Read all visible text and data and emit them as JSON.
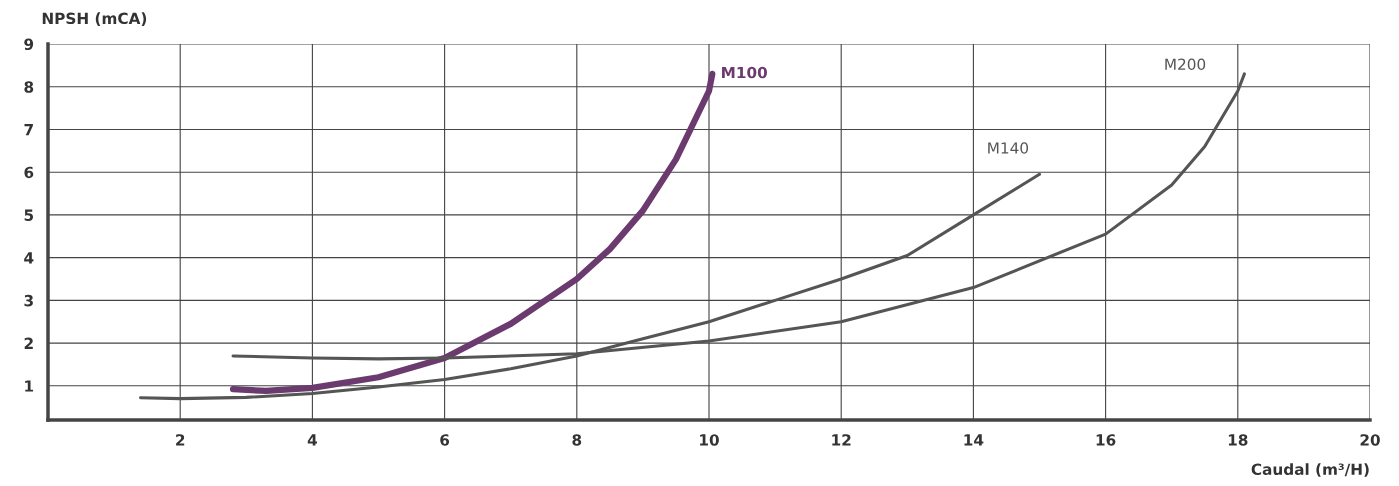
{
  "chart_data": {
    "type": "line",
    "xlabel": "Caudal (m³/H)",
    "ylabel": "NPSH (mCA)",
    "xlim": [
      0,
      20
    ],
    "ylim": [
      0.2,
      9
    ],
    "xticks": [
      2,
      4,
      6,
      8,
      10,
      12,
      14,
      16,
      18,
      20
    ],
    "yticks": [
      1,
      2,
      3,
      4,
      5,
      6,
      7,
      8,
      9
    ],
    "grid": true,
    "legend": false,
    "marker": "none",
    "line_style": "solid",
    "series": [
      {
        "name": "M100",
        "color": "#6b3a6e",
        "x": [
          2.8,
          3.3,
          4,
          5,
          6,
          7,
          8,
          8.5,
          9,
          9.5,
          10,
          10.05
        ],
        "values": [
          0.92,
          0.88,
          0.95,
          1.2,
          1.65,
          2.45,
          3.5,
          4.2,
          5.1,
          6.3,
          7.9,
          8.3
        ]
      },
      {
        "name": "M140",
        "color": "#555555",
        "x": [
          1.4,
          2,
          3,
          4,
          5,
          6,
          7,
          8,
          9,
          10,
          11,
          12,
          13,
          14,
          15
        ],
        "values": [
          0.72,
          0.7,
          0.73,
          0.82,
          0.97,
          1.15,
          1.4,
          1.7,
          2.1,
          2.5,
          3.0,
          3.5,
          4.05,
          5.0,
          5.95
        ]
      },
      {
        "name": "M200",
        "color": "#555555",
        "x": [
          2.8,
          4,
          5,
          6,
          8,
          10,
          12,
          14,
          16,
          17,
          17.5,
          18,
          18.1
        ],
        "values": [
          1.7,
          1.65,
          1.63,
          1.65,
          1.75,
          2.05,
          2.5,
          3.3,
          4.55,
          5.7,
          6.6,
          7.9,
          8.3
        ]
      }
    ]
  }
}
